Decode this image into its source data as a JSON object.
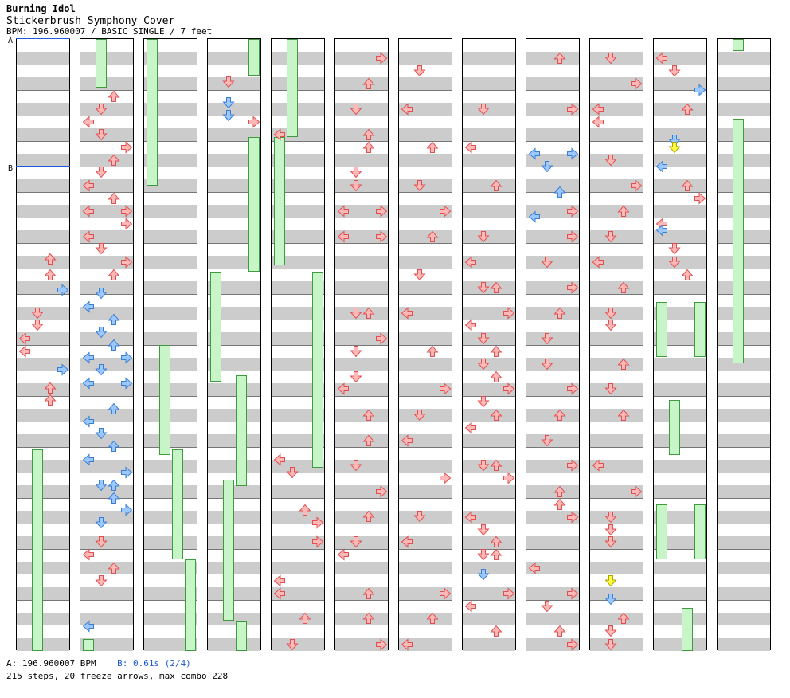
{
  "header": {
    "title": "Burning Idol",
    "subtitle": "Stickerbrush Symphony Cover",
    "info": "BPM: 196.960007 / BASIC SINGLE / 7 feet"
  },
  "markers": [
    {
      "label": "A",
      "col": 0
    },
    {
      "label": "B",
      "col": 0
    }
  ],
  "footer": {
    "bpm_line": "A: 196.960007 BPM",
    "stop_line": "B: 0.61s (2/4)",
    "summary": "215 steps, 20 freeze arrows, max combo 228"
  },
  "colors": {
    "red_fill": "#ffb8b8",
    "red_stroke": "#e05050",
    "blue_fill": "#9cc8ff",
    "blue_stroke": "#3a7fd6",
    "yellow_fill": "#ffff40",
    "yellow_stroke": "#b0a000",
    "freeze_fill": "#c8f5c8",
    "freeze_stroke": "#3d9a3d"
  },
  "columns": [
    {
      "arrows": [
        [
          "down",
          0.36,
          "red"
        ]
      ],
      "freezes": []
    },
    {
      "arrows": [],
      "freezes": []
    },
    {
      "arrows": [],
      "freezes": []
    },
    {
      "arrows": [],
      "freezes": []
    },
    {
      "arrows": [],
      "freezes": []
    },
    {
      "arrows": [],
      "freezes": []
    },
    {
      "arrows": [],
      "freezes": []
    },
    {
      "arrows": [],
      "freezes": []
    },
    {
      "arrows": [],
      "freezes": []
    },
    {
      "arrows": [],
      "freezes": []
    },
    {
      "arrows": [],
      "freezes": []
    },
    {
      "arrows": [],
      "freezes": []
    }
  ]
}
